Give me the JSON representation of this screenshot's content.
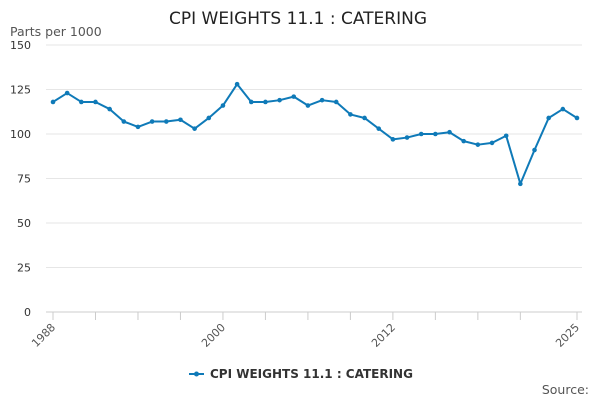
{
  "chart_data": {
    "type": "line",
    "title": "CPI WEIGHTS 11.1 : CATERING",
    "ylabel": "Parts per 1000",
    "xlabel": "",
    "ylim": [
      0,
      150
    ],
    "yticks": [
      "0",
      "25",
      "50",
      "75",
      "100",
      "125",
      "150"
    ],
    "xlim": [
      1988,
      2025
    ],
    "xticks": [
      "1988",
      "2000",
      "2012",
      "2025"
    ],
    "minor_xticks": [
      1991,
      1994,
      1997,
      2003,
      2006,
      2009,
      2015,
      2018,
      2021
    ],
    "grid": true,
    "legend_position": "bottom",
    "source": "Source:",
    "series_color": "#0f7ab8",
    "series": [
      {
        "name": "CPI WEIGHTS 11.1 : CATERING",
        "x": [
          1988,
          1989,
          1990,
          1991,
          1992,
          1993,
          1994,
          1995,
          1996,
          1997,
          1998,
          1999,
          2000,
          2001,
          2002,
          2003,
          2004,
          2005,
          2006,
          2007,
          2008,
          2009,
          2010,
          2011,
          2012,
          2013,
          2014,
          2015,
          2016,
          2017,
          2018,
          2019,
          2020,
          2021,
          2022,
          2023,
          2024,
          2025
        ],
        "values": [
          118,
          123,
          118,
          118,
          114,
          107,
          104,
          107,
          107,
          108,
          103,
          109,
          116,
          128,
          118,
          118,
          119,
          121,
          116,
          119,
          118,
          111,
          109,
          103,
          97,
          98,
          100,
          100,
          101,
          96,
          94,
          95,
          99,
          72,
          91,
          109,
          114,
          109
        ]
      }
    ]
  }
}
